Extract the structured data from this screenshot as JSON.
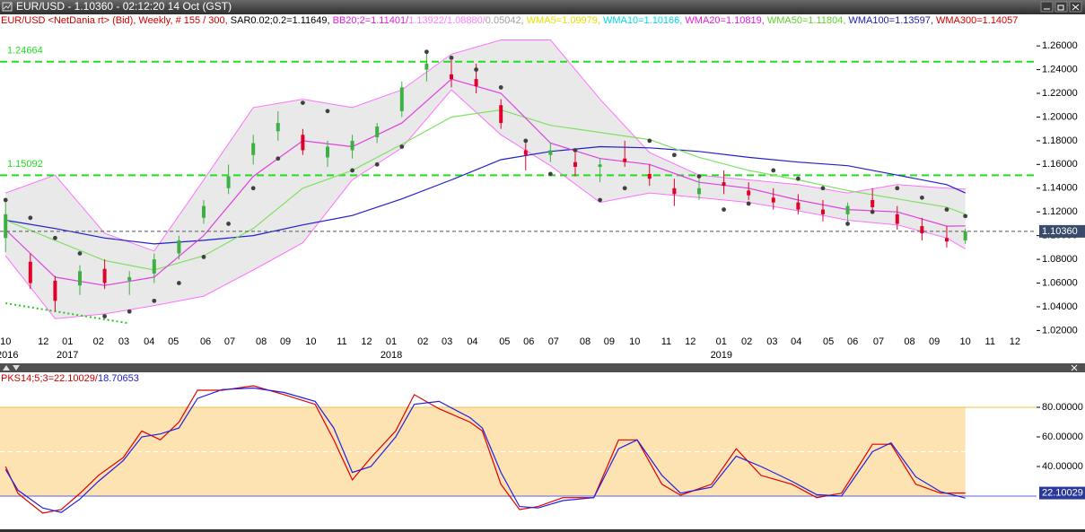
{
  "window_title": "EUR/USD - 1.10360 - 02:12:20  14 Oct (GST)",
  "chart_data": [
    {
      "type": "candlestick",
      "info": [
        {
          "text": "EUR/USD <NetDania rt> (Bid), Weekly, # 155 / 300, ",
          "color": "#d00000"
        },
        {
          "text": "SAR0.02;0.2=1.11649, ",
          "color": "#000000"
        },
        {
          "text": "BB20;2=1.11401/",
          "color": "#e020e0"
        },
        {
          "text": "1.13922/",
          "color": "#ff80ff"
        },
        {
          "text": "1.08880/",
          "color": "#ff80ff"
        },
        {
          "text": "0.05042, ",
          "color": "#a0a0a0"
        },
        {
          "text": "WMA5=1.09979, ",
          "color": "#e8e000"
        },
        {
          "text": "WMA10=1.10166, ",
          "color": "#00d8e8"
        },
        {
          "text": "WMA20=1.10819, ",
          "color": "#e020e0"
        },
        {
          "text": "WMA50=1.11804, ",
          "color": "#60d030"
        },
        {
          "text": "WMA100=1.13597, ",
          "color": "#2020b0"
        },
        {
          "text": "WMA300=1.14057",
          "color": "#d00000"
        }
      ],
      "x": [
        0,
        4,
        8,
        12,
        16,
        20,
        24,
        28,
        32,
        36,
        40,
        44,
        48,
        52,
        56,
        60,
        64,
        68,
        72,
        76,
        80,
        84,
        88,
        92,
        96,
        100,
        104,
        108,
        112,
        116,
        120,
        124,
        128,
        132,
        136,
        140,
        144,
        148,
        152,
        155
      ],
      "open": [
        1.098,
        1.078,
        1.062,
        1.058,
        1.072,
        1.062,
        1.068,
        1.085,
        1.115,
        1.14,
        1.168,
        1.188,
        1.185,
        1.166,
        1.172,
        1.183,
        1.205,
        1.24,
        1.236,
        1.232,
        1.21,
        1.172,
        1.168,
        1.162,
        1.158,
        1.165,
        1.152,
        1.14,
        1.135,
        1.145,
        1.138,
        1.132,
        1.128,
        1.122,
        1.118,
        1.13,
        1.118,
        1.108,
        1.098,
        1.096
      ],
      "high": [
        1.132,
        1.085,
        1.066,
        1.075,
        1.08,
        1.07,
        1.085,
        1.1,
        1.13,
        1.16,
        1.185,
        1.205,
        1.19,
        1.18,
        1.185,
        1.195,
        1.23,
        1.255,
        1.248,
        1.245,
        1.215,
        1.18,
        1.178,
        1.17,
        1.165,
        1.18,
        1.16,
        1.148,
        1.148,
        1.155,
        1.145,
        1.14,
        1.135,
        1.13,
        1.128,
        1.14,
        1.125,
        1.115,
        1.108,
        1.106
      ],
      "low": [
        1.086,
        1.055,
        1.036,
        1.05,
        1.055,
        1.05,
        1.06,
        1.08,
        1.11,
        1.135,
        1.16,
        1.18,
        1.168,
        1.158,
        1.165,
        1.178,
        1.2,
        1.23,
        1.225,
        1.22,
        1.19,
        1.155,
        1.162,
        1.15,
        1.145,
        1.158,
        1.142,
        1.125,
        1.13,
        1.135,
        1.13,
        1.122,
        1.118,
        1.112,
        1.11,
        1.12,
        1.105,
        1.096,
        1.09,
        1.093
      ],
      "close": [
        1.118,
        1.06,
        1.045,
        1.07,
        1.06,
        1.065,
        1.08,
        1.096,
        1.125,
        1.15,
        1.178,
        1.195,
        1.172,
        1.175,
        1.18,
        1.192,
        1.225,
        1.245,
        1.232,
        1.226,
        1.195,
        1.168,
        1.172,
        1.158,
        1.16,
        1.162,
        1.148,
        1.135,
        1.14,
        1.142,
        1.134,
        1.128,
        1.122,
        1.118,
        1.125,
        1.124,
        1.11,
        1.102,
        1.095,
        1.1036
      ],
      "up_color": "#3cb043",
      "down_color": "#e0002a",
      "band": {
        "color": "#ff70ff",
        "fill": "#e9e9e9",
        "x": [
          0,
          8,
          16,
          24,
          32,
          40,
          48,
          56,
          64,
          72,
          80,
          88,
          96,
          104,
          112,
          120,
          128,
          136,
          144,
          152,
          155
        ],
        "upper": [
          1.136,
          1.151,
          1.102,
          1.087,
          1.147,
          1.208,
          1.215,
          1.208,
          1.223,
          1.253,
          1.265,
          1.265,
          1.215,
          1.17,
          1.151,
          1.147,
          1.143,
          1.136,
          1.143,
          1.14,
          1.13922
        ],
        "lower": [
          1.083,
          1.03,
          1.034,
          1.041,
          1.049,
          1.071,
          1.094,
          1.147,
          1.174,
          1.223,
          1.185,
          1.159,
          1.128,
          1.136,
          1.132,
          1.128,
          1.121,
          1.113,
          1.109,
          1.098,
          1.0888
        ]
      },
      "overlays": [
        {
          "color": "#2020c8",
          "x": [
            0,
            8,
            16,
            24,
            32,
            40,
            48,
            56,
            64,
            72,
            80,
            88,
            96,
            104,
            112,
            120,
            128,
            136,
            144,
            152,
            155
          ],
          "values": [
            1.113,
            1.106,
            1.098,
            1.093,
            1.096,
            1.1,
            1.109,
            1.117,
            1.131,
            1.147,
            1.164,
            1.171,
            1.175,
            1.174,
            1.171,
            1.166,
            1.162,
            1.159,
            1.151,
            1.143,
            1.13597
          ]
        },
        {
          "color": "#80e060",
          "x": [
            0,
            8,
            16,
            24,
            32,
            40,
            48,
            56,
            64,
            72,
            80,
            88,
            96,
            104,
            112,
            120,
            128,
            136,
            144,
            152,
            155
          ],
          "values": [
            1.113,
            1.096,
            1.079,
            1.071,
            1.083,
            1.106,
            1.14,
            1.155,
            1.177,
            1.2,
            1.206,
            1.193,
            1.187,
            1.181,
            1.166,
            1.155,
            1.147,
            1.138,
            1.131,
            1.124,
            1.11804
          ]
        },
        {
          "color": "#e040e0",
          "x": [
            0,
            8,
            16,
            24,
            32,
            40,
            48,
            56,
            64,
            72,
            80,
            88,
            96,
            104,
            112,
            120,
            128,
            136,
            144,
            152,
            155
          ],
          "values": [
            1.105,
            1.065,
            1.058,
            1.065,
            1.1,
            1.15,
            1.18,
            1.175,
            1.195,
            1.232,
            1.22,
            1.178,
            1.165,
            1.16,
            1.145,
            1.14,
            1.13,
            1.122,
            1.12,
            1.108,
            1.10819
          ]
        }
      ],
      "sar": {
        "color": "#404040",
        "x": [
          0,
          4,
          8,
          12,
          16,
          20,
          24,
          28,
          32,
          36,
          40,
          44,
          48,
          52,
          56,
          60,
          64,
          68,
          72,
          76,
          80,
          84,
          88,
          92,
          96,
          100,
          104,
          108,
          112,
          116,
          120,
          124,
          128,
          132,
          136,
          140,
          144,
          148,
          152,
          155
        ],
        "values": [
          1.13,
          1.115,
          1.098,
          1.085,
          1.032,
          1.036,
          1.045,
          1.06,
          1.082,
          1.11,
          1.14,
          1.165,
          1.212,
          1.205,
          1.155,
          1.16,
          1.175,
          1.255,
          1.25,
          1.24,
          1.225,
          1.18,
          1.152,
          1.172,
          1.13,
          1.14,
          1.18,
          1.168,
          1.15,
          1.122,
          1.127,
          1.155,
          1.148,
          1.14,
          1.11,
          1.12,
          1.14,
          1.132,
          1.122,
          1.11649
        ]
      },
      "hlines": [
        1.24664,
        1.15092
      ],
      "hline_color": "#22dd22",
      "trendline": {
        "x": [
          0,
          20
        ],
        "values": [
          1.043,
          1.026
        ],
        "color": "#22cc22"
      },
      "price_line": {
        "value": 1.1036,
        "label": "1.10360"
      },
      "xlim": [
        -0.9,
        166.5
      ],
      "ylim": [
        1.015,
        1.276
      ],
      "yticks": [
        {
          "value": 1.02,
          "label": "1.02000"
        },
        {
          "value": 1.04,
          "label": "1.04000"
        },
        {
          "value": 1.06,
          "label": "1.06000"
        },
        {
          "value": 1.08,
          "label": "1.08000"
        },
        {
          "value": 1.1,
          "label": "1.10000"
        },
        {
          "value": 1.12,
          "label": "1.12000"
        },
        {
          "value": 1.14,
          "label": "1.14000"
        },
        {
          "value": 1.16,
          "label": "1.16000"
        },
        {
          "value": 1.18,
          "label": "1.18000"
        },
        {
          "value": 1.2,
          "label": "1.20000"
        },
        {
          "value": 1.22,
          "label": "1.22000"
        },
        {
          "value": 1.24,
          "label": "1.24000"
        },
        {
          "value": 1.26,
          "label": "1.26000"
        }
      ],
      "xticks": [
        {
          "value": 0,
          "label": "10"
        },
        {
          "value": 6.1,
          "label": "12"
        },
        {
          "value": 10,
          "label": "01"
        },
        {
          "value": 15,
          "label": "02"
        },
        {
          "value": 19.1,
          "label": "03"
        },
        {
          "value": 23.2,
          "label": "04"
        },
        {
          "value": 27.1,
          "label": "05"
        },
        {
          "value": 32.3,
          "label": "06"
        },
        {
          "value": 36.2,
          "label": "07"
        },
        {
          "value": 41.3,
          "label": "08"
        },
        {
          "value": 45.2,
          "label": "09"
        },
        {
          "value": 49.3,
          "label": "10"
        },
        {
          "value": 54.3,
          "label": "11"
        },
        {
          "value": 58.3,
          "label": "12"
        },
        {
          "value": 62.3,
          "label": "01"
        },
        {
          "value": 67.4,
          "label": "02"
        },
        {
          "value": 71.3,
          "label": "03"
        },
        {
          "value": 75.4,
          "label": "04"
        },
        {
          "value": 80.6,
          "label": "05"
        },
        {
          "value": 84.5,
          "label": "06"
        },
        {
          "value": 88.5,
          "label": "07"
        },
        {
          "value": 93.6,
          "label": "08"
        },
        {
          "value": 97.5,
          "label": "09"
        },
        {
          "value": 101.6,
          "label": "10"
        },
        {
          "value": 106.7,
          "label": "11"
        },
        {
          "value": 110.6,
          "label": "12"
        },
        {
          "value": 115.6,
          "label": "01"
        },
        {
          "value": 119.7,
          "label": "02"
        },
        {
          "value": 123.8,
          "label": "03"
        },
        {
          "value": 127.7,
          "label": "04"
        },
        {
          "value": 132.9,
          "label": "05"
        },
        {
          "value": 136.8,
          "label": "06"
        },
        {
          "value": 141,
          "label": "07"
        },
        {
          "value": 146,
          "label": "08"
        },
        {
          "value": 150,
          "label": "09"
        },
        {
          "value": 155,
          "label": "10"
        },
        {
          "value": 159,
          "label": "11"
        },
        {
          "value": 163,
          "label": "12"
        }
      ],
      "year_ticks": [
        {
          "value": 0.3,
          "label": "2016"
        },
        {
          "value": 10,
          "label": "2017"
        },
        {
          "value": 62.3,
          "label": "2018"
        },
        {
          "value": 115.6,
          "label": "2019"
        }
      ]
    },
    {
      "type": "line",
      "info": [
        {
          "text": "PKS14;5;3=22.10029/",
          "color": "#d00000"
        },
        {
          "text": "18.70653",
          "color": "#2020d0"
        }
      ],
      "x": [
        0,
        2,
        6,
        9,
        12,
        15,
        19,
        22,
        25,
        28,
        31,
        35,
        40,
        45,
        50,
        53,
        56,
        59,
        63,
        66,
        70,
        75,
        77,
        80,
        83,
        86,
        90,
        95,
        99,
        102,
        106,
        109,
        114,
        118,
        122,
        127,
        131,
        135,
        140,
        143,
        147,
        151,
        155
      ],
      "series": [
        {
          "color": "#e00000",
          "values": [
            40,
            21.8,
            8.5,
            10.9,
            21.8,
            34,
            46,
            64,
            58,
            70,
            91.5,
            91.5,
            94.5,
            88.5,
            82,
            58,
            31,
            46,
            64,
            88.5,
            79,
            70,
            64,
            28,
            10.9,
            13,
            19,
            19,
            58,
            58,
            28,
            20.6,
            28,
            52,
            34,
            28,
            19,
            22,
            55,
            55,
            28,
            22,
            22.10029
          ]
        },
        {
          "color": "#2020e0",
          "values": [
            38,
            24,
            12,
            9,
            18,
            30,
            44,
            60,
            62,
            66,
            86,
            92,
            93,
            90,
            84,
            66,
            36,
            40,
            60,
            82,
            84,
            73,
            66,
            36,
            13,
            12,
            17,
            19,
            52,
            58,
            34,
            22,
            26,
            47,
            40,
            30,
            21,
            20,
            50,
            56,
            33,
            23,
            18.70653
          ]
        }
      ],
      "levels": [
        {
          "value": 80,
          "color": "#f0c040"
        },
        {
          "value": 50,
          "color": "#ffffff",
          "dashed": true
        },
        {
          "value": 20,
          "color": "#6060d8"
        }
      ],
      "zone_fill": "#fde2b2",
      "last_value": 22.10029,
      "xlim": [
        -0.9,
        166.5
      ],
      "ylim": [
        -2.4,
        103
      ],
      "yticks": [
        {
          "value": 40,
          "label": "40.00000"
        },
        {
          "value": 60,
          "label": "60.00000"
        },
        {
          "value": 80,
          "label": "80.00000"
        }
      ]
    }
  ]
}
